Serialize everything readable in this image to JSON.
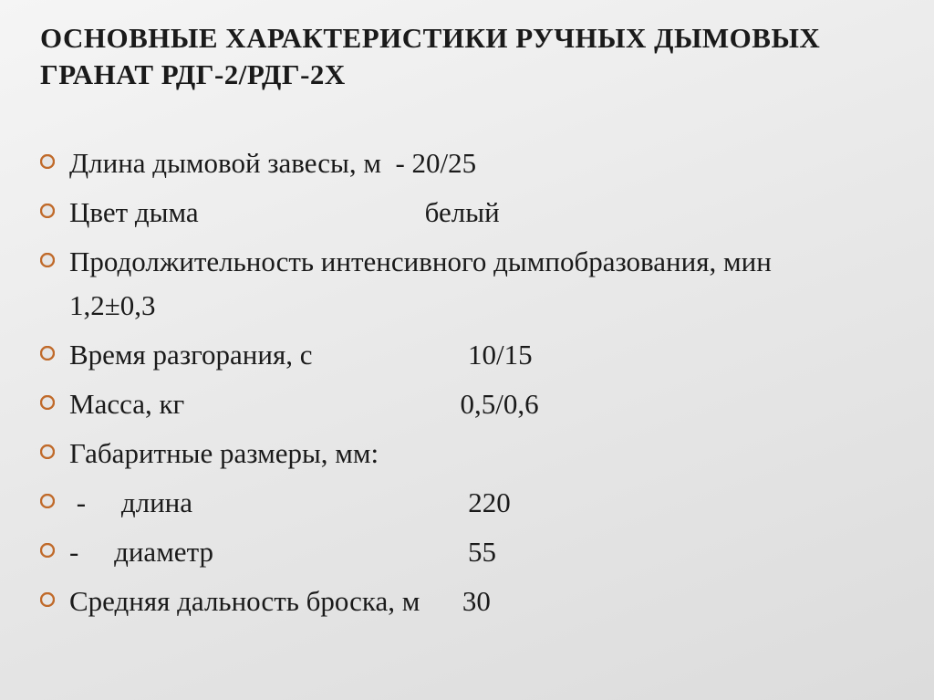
{
  "colors": {
    "bullet_ring": "#c06a2a",
    "bullet_fill": "#e6e6e6",
    "text": "#1a1a1a"
  },
  "title": "ОСНОВНЫЕ  ХАРАКТЕРИСТИКИ РУЧНЫХ ДЫМОВЫХ ГРАНАТ РДГ-2/РДГ-2Х",
  "items": [
    {
      "text": "Длина дымовой завесы, м  - 20/25",
      "wrap": false
    },
    {
      "text": "Цвет дыма                                белый",
      "wrap": false
    },
    {
      "text": "Продолжительность интенсивного дымпобразования, мин                                      1,2±0,3",
      "wrap": true
    },
    {
      "text": "Время разгорания, с                      10/15",
      "wrap": false
    },
    {
      "text": "Масса, кг                                       0,5/0,6",
      "wrap": false
    },
    {
      "text": "Габаритные размеры, мм:",
      "wrap": false
    },
    {
      "text": " -     длина                                       220",
      "wrap": false
    },
    {
      "text": "-     диаметр                                    55",
      "wrap": false
    },
    {
      "text": "Средняя дальность броска, м      30",
      "wrap": false
    }
  ]
}
